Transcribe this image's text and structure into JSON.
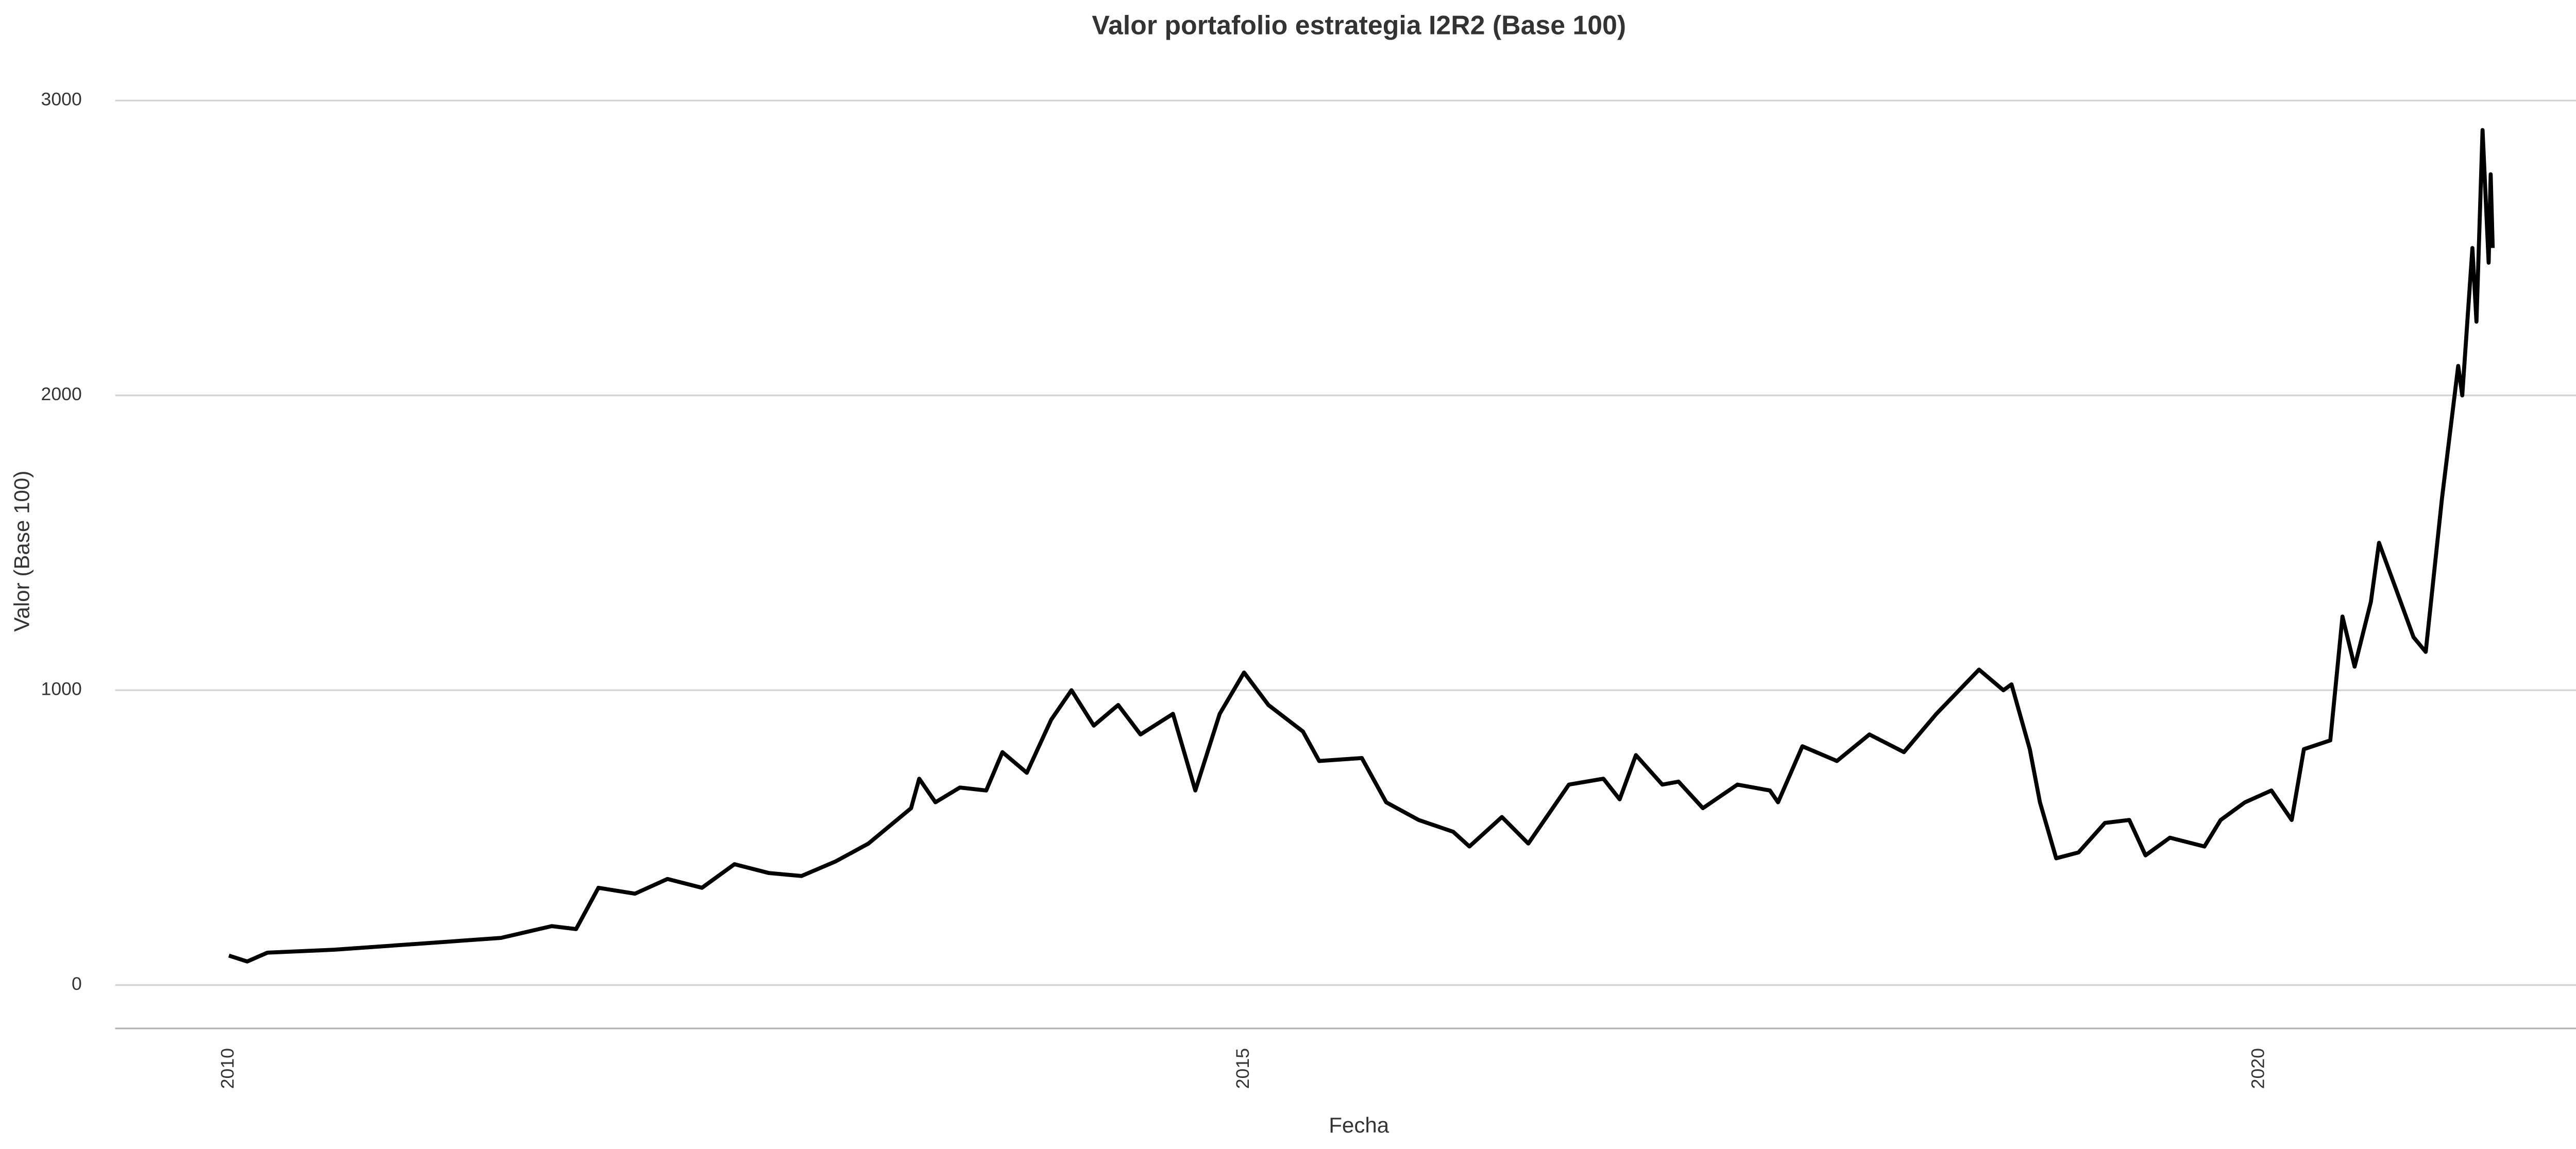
{
  "chart_data": {
    "type": "line",
    "title": "Valor portafolio estrategia I2R2 (Base 100)",
    "x_label": "Fecha",
    "y_label": "Valor (Base 100)",
    "x": [
      2010.0,
      2010.09,
      2010.19,
      2010.52,
      2010.93,
      2011.34,
      2011.59,
      2011.71,
      2011.82,
      2012.0,
      2012.16,
      2012.33,
      2012.49,
      2012.66,
      2012.82,
      2012.99,
      2013.15,
      2013.36,
      2013.4,
      2013.48,
      2013.6,
      2013.73,
      2013.81,
      2013.93,
      2014.05,
      2014.15,
      2014.26,
      2014.38,
      2014.49,
      2014.65,
      2014.76,
      2014.88,
      2015.0,
      2015.12,
      2015.29,
      2015.37,
      2015.58,
      2015.7,
      2015.86,
      2016.03,
      2016.11,
      2016.27,
      2016.4,
      2016.48,
      2016.6,
      2016.77,
      2016.85,
      2016.93,
      2017.06,
      2017.14,
      2017.26,
      2017.43,
      2017.59,
      2017.63,
      2017.75,
      2017.92,
      2018.08,
      2018.25,
      2018.41,
      2018.62,
      2018.74,
      2018.78,
      2018.87,
      2018.92,
      2019.0,
      2019.11,
      2019.24,
      2019.36,
      2019.44,
      2019.56,
      2019.73,
      2019.81,
      2019.93,
      2020.06,
      2020.16,
      2020.22,
      2020.35,
      2020.41,
      2020.47,
      2020.55,
      2020.59,
      2020.67,
      2020.76,
      2020.82,
      2020.9,
      2020.98,
      2021.0,
      2021.05,
      2021.07,
      2021.1,
      2021.13,
      2021.14,
      2021.15
    ],
    "series": [
      {
        "name": "Valor",
        "color": "#000000",
        "values": [
          100,
          80,
          110,
          120,
          140,
          160,
          200,
          190,
          330,
          310,
          360,
          330,
          410,
          380,
          370,
          420,
          480,
          600,
          700,
          620,
          670,
          660,
          790,
          720,
          900,
          1000,
          880,
          950,
          850,
          920,
          660,
          920,
          1060,
          950,
          860,
          760,
          770,
          620,
          560,
          520,
          470,
          570,
          480,
          560,
          680,
          700,
          630,
          780,
          680,
          690,
          600,
          680,
          660,
          620,
          810,
          760,
          850,
          790,
          920,
          1070,
          1000,
          1020,
          800,
          620,
          430,
          450,
          550,
          560,
          440,
          500,
          470,
          560,
          620,
          660,
          560,
          800,
          830,
          1250,
          1080,
          1300,
          1500,
          1350,
          1180,
          1130,
          1650,
          2100,
          2000,
          2500,
          2250,
          2900,
          2450,
          2750,
          2500
        ]
      }
    ],
    "xlim": [
      2009.44,
      2021.7
    ],
    "xticks": [
      2010,
      2015,
      2020
    ],
    "ylim": [
      -147,
      3000
    ],
    "yticks": [
      0,
      1000,
      2000,
      3000
    ],
    "grid": true
  }
}
